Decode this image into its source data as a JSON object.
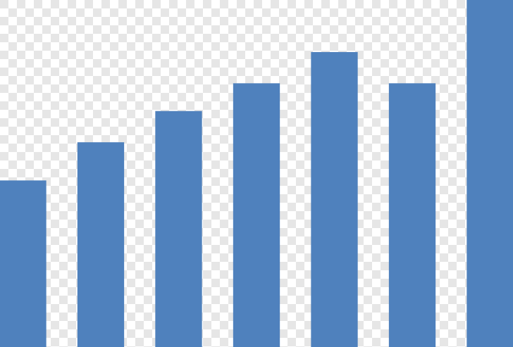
{
  "chart_data": {
    "type": "bar",
    "categories": [
      null,
      null,
      null,
      null,
      null,
      null,
      null
    ],
    "values": [
      48,
      59,
      68,
      76,
      85,
      76,
      100
    ],
    "color": "#4f81bd",
    "ylim": [
      0,
      100
    ]
  }
}
